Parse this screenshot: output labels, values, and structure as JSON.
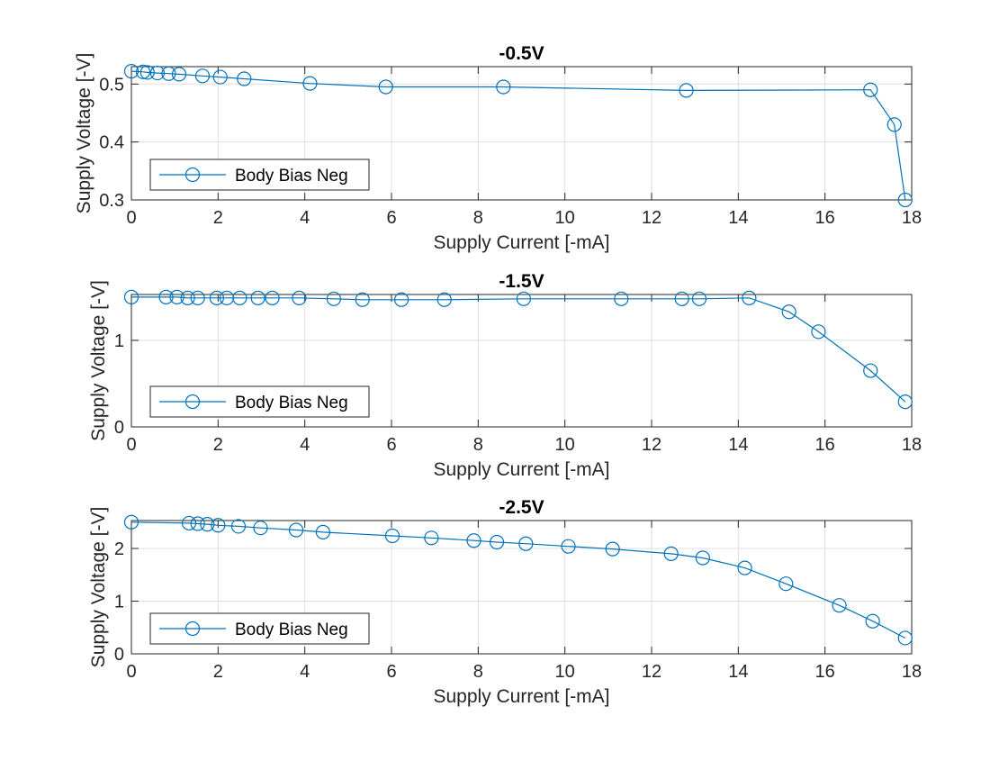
{
  "figure": {
    "background": "#ffffff",
    "axes_color": "#262626",
    "grid_color": "#dfdfdf",
    "series_color": "#0072bd"
  },
  "chart_data": [
    {
      "type": "line",
      "title": "-0.5V",
      "xlabel": "Supply Current [-mA]",
      "ylabel": "Supply Voltage [-V]",
      "xlim": [
        0,
        18
      ],
      "ylim": [
        0.3,
        0.53
      ],
      "xticks": [
        0,
        2,
        4,
        6,
        8,
        10,
        12,
        14,
        16,
        18
      ],
      "yticks": [
        0.3,
        0.4,
        0.5
      ],
      "ytick_labels": [
        "0.3",
        "0.4",
        "0.5"
      ],
      "grid": true,
      "legend": "bottom-left",
      "marker": "circle",
      "series": [
        {
          "name": "Body Bias Neg",
          "x": [
            0.0,
            0.27,
            0.37,
            0.6,
            0.86,
            1.1,
            1.64,
            2.05,
            2.6,
            4.12,
            5.87,
            8.58,
            12.8,
            17.05,
            17.6,
            17.85
          ],
          "y": [
            0.522,
            0.521,
            0.52,
            0.519,
            0.518,
            0.517,
            0.514,
            0.512,
            0.509,
            0.501,
            0.495,
            0.495,
            0.489,
            0.49,
            0.43,
            0.3
          ]
        }
      ]
    },
    {
      "type": "line",
      "title": "-1.5V",
      "xlabel": "Supply Current [-mA]",
      "ylabel": "Supply Voltage [-V]",
      "xlim": [
        0,
        18
      ],
      "ylim": [
        0,
        1.53
      ],
      "xticks": [
        0,
        2,
        4,
        6,
        8,
        10,
        12,
        14,
        16,
        18
      ],
      "yticks": [
        0,
        1
      ],
      "ytick_labels": [
        "0",
        "1"
      ],
      "grid": true,
      "legend": "bottom-left",
      "marker": "circle",
      "series": [
        {
          "name": "Body Bias Neg",
          "x": [
            0.0,
            0.8,
            1.05,
            1.3,
            1.53,
            1.97,
            2.2,
            2.5,
            2.92,
            3.25,
            3.87,
            4.67,
            5.33,
            6.23,
            7.22,
            9.05,
            11.3,
            12.7,
            13.1,
            14.25,
            15.17,
            15.85,
            17.05,
            17.85
          ],
          "y": [
            1.5,
            1.5,
            1.5,
            1.49,
            1.49,
            1.49,
            1.49,
            1.49,
            1.49,
            1.49,
            1.49,
            1.48,
            1.47,
            1.47,
            1.47,
            1.48,
            1.48,
            1.48,
            1.48,
            1.49,
            1.33,
            1.1,
            0.65,
            0.29
          ]
        }
      ]
    },
    {
      "type": "line",
      "title": "-2.5V",
      "xlabel": "Supply Current [-mA]",
      "ylabel": "Supply Voltage [-V]",
      "xlim": [
        0,
        18
      ],
      "ylim": [
        0,
        2.53
      ],
      "xticks": [
        0,
        2,
        4,
        6,
        8,
        10,
        12,
        14,
        16,
        18
      ],
      "yticks": [
        0,
        1,
        2
      ],
      "ytick_labels": [
        "0",
        "1",
        "2"
      ],
      "grid": true,
      "legend": "bottom-left",
      "marker": "circle",
      "series": [
        {
          "name": "Body Bias Neg",
          "x": [
            0.0,
            1.33,
            1.53,
            1.75,
            2.0,
            2.47,
            2.98,
            3.8,
            4.42,
            6.02,
            6.92,
            7.9,
            8.43,
            9.1,
            10.08,
            11.1,
            12.45,
            13.18,
            14.15,
            15.1,
            16.33,
            17.1,
            17.85
          ],
          "y": [
            2.5,
            2.48,
            2.47,
            2.46,
            2.44,
            2.42,
            2.39,
            2.35,
            2.31,
            2.24,
            2.2,
            2.15,
            2.12,
            2.09,
            2.04,
            1.99,
            1.9,
            1.82,
            1.63,
            1.33,
            0.92,
            0.62,
            0.3
          ]
        }
      ]
    }
  ]
}
